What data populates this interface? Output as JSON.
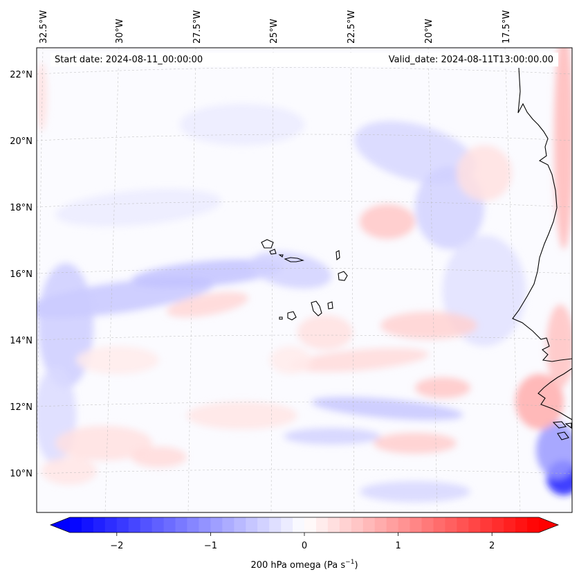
{
  "map": {
    "start_date_label": "Start date: 2024-08-11_00:00:00",
    "valid_date_label": "Valid_date: 2024-08-11T13:00:00.00",
    "lon_labels": [
      "32.5°W",
      "30°W",
      "27.5°W",
      "25°W",
      "22.5°W",
      "20°W",
      "17.5°W"
    ],
    "lat_labels": [
      "22°N",
      "20°N",
      "18°N",
      "16°N",
      "14°N",
      "12°N",
      "10°N"
    ],
    "field": "200 hPa omega",
    "colormap": "bwr",
    "gridlines": true,
    "coastlines": true
  },
  "colorbar": {
    "label": "200 hPa omega (Pa s",
    "label_superscript": "−1",
    "label_close": ")",
    "ticks": [
      "−2",
      "−1",
      "0",
      "1",
      "2"
    ],
    "tick_values": [
      -2,
      -1,
      0,
      1,
      2
    ],
    "range": [
      -2.5,
      2.5
    ],
    "extend": "both",
    "colors": {
      "min": "#0000ff",
      "mid": "#ffffff",
      "max": "#ff0000"
    }
  }
}
